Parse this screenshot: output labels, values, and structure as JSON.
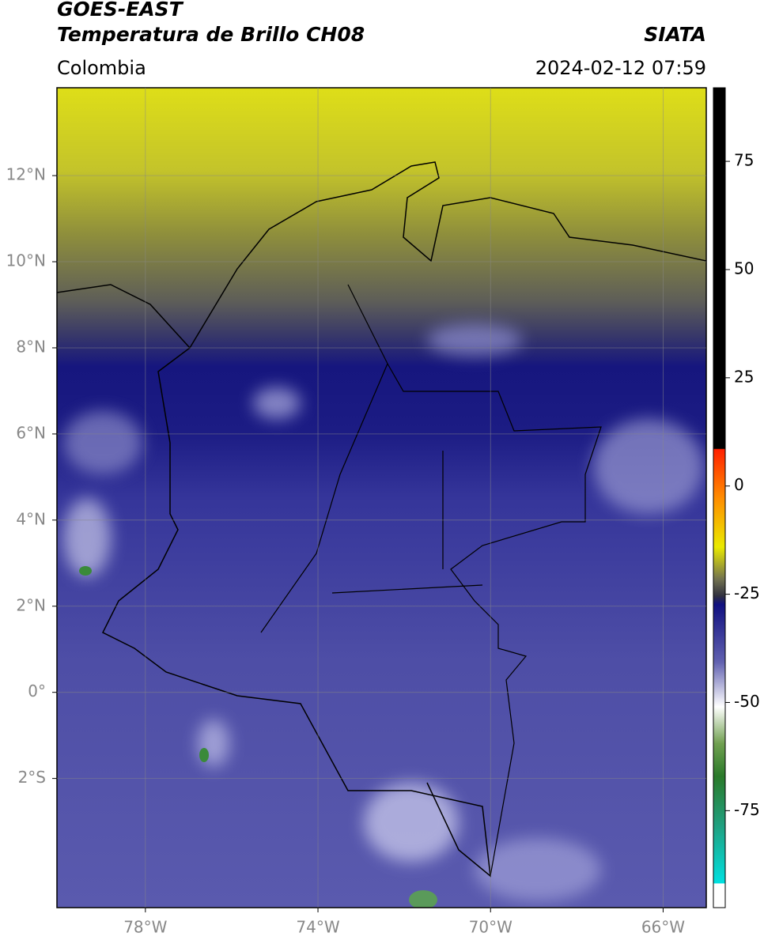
{
  "header": {
    "satellite": "GOES-EAST",
    "product": "Temperatura de Brillo CH08",
    "source": "SIATA",
    "region": "Colombia",
    "datetime": "2024-02-12 07:59"
  },
  "chart_data": {
    "type": "map",
    "xlim": [
      -80.05,
      -65.0
    ],
    "ylim": [
      -5.0,
      14.04
    ],
    "xticks": [
      {
        "value": -78,
        "label": "78°W"
      },
      {
        "value": -74,
        "label": "74°W"
      },
      {
        "value": -70,
        "label": "70°W"
      },
      {
        "value": -66,
        "label": "66°W"
      }
    ],
    "yticks": [
      {
        "value": 12,
        "label": "12°N"
      },
      {
        "value": 10,
        "label": "10°N"
      },
      {
        "value": 8,
        "label": "8°N"
      },
      {
        "value": 6,
        "label": "6°N"
      },
      {
        "value": 4,
        "label": "4°N"
      },
      {
        "value": 2,
        "label": "2°N"
      },
      {
        "value": 0,
        "label": "0°"
      },
      {
        "value": -2,
        "label": "2°S"
      }
    ],
    "grid": true,
    "colorbar": {
      "lim": [
        -97.4,
        92
      ],
      "ticks": [
        75,
        50,
        25,
        0,
        -25,
        -50,
        -75
      ]
    }
  }
}
